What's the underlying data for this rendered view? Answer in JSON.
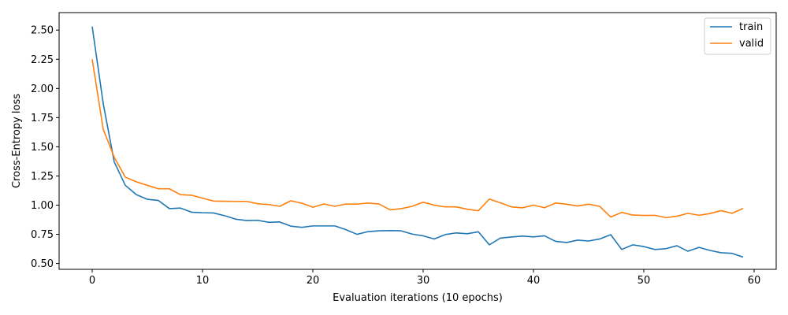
{
  "chart_data": {
    "type": "line",
    "title": "",
    "xlabel": "Evaluation iterations (10 epochs)",
    "ylabel": "Cross-Entropy loss",
    "xlim": [
      -3,
      62
    ],
    "ylim": [
      0.45,
      2.65
    ],
    "xticks": [
      0,
      10,
      20,
      30,
      40,
      50,
      60
    ],
    "yticks": [
      0.5,
      0.75,
      1.0,
      1.25,
      1.5,
      1.75,
      2.0,
      2.25,
      2.5
    ],
    "grid": false,
    "legend_position": "top-right",
    "x": [
      0,
      1,
      2,
      3,
      4,
      5,
      6,
      7,
      8,
      9,
      10,
      11,
      12,
      13,
      14,
      15,
      16,
      17,
      18,
      19,
      20,
      21,
      22,
      23,
      24,
      25,
      26,
      27,
      28,
      29,
      30,
      31,
      32,
      33,
      34,
      35,
      36,
      37,
      38,
      39,
      40,
      41,
      42,
      43,
      44,
      45,
      46,
      47,
      48,
      49,
      50,
      51,
      52,
      53,
      54,
      55,
      56,
      57,
      58,
      59
    ],
    "series": [
      {
        "name": "train",
        "color": "#1f77b4",
        "values": [
          2.53,
          1.87,
          1.37,
          1.17,
          1.09,
          1.05,
          1.04,
          0.97,
          0.975,
          0.94,
          0.935,
          0.933,
          0.91,
          0.88,
          0.868,
          0.87,
          0.853,
          0.856,
          0.82,
          0.81,
          0.822,
          0.822,
          0.822,
          0.79,
          0.75,
          0.773,
          0.78,
          0.782,
          0.78,
          0.752,
          0.737,
          0.71,
          0.748,
          0.762,
          0.755,
          0.772,
          0.66,
          0.718,
          0.727,
          0.735,
          0.728,
          0.737,
          0.69,
          0.68,
          0.7,
          0.693,
          0.71,
          0.747,
          0.62,
          0.66,
          0.645,
          0.62,
          0.627,
          0.652,
          0.605,
          0.638,
          0.612,
          0.592,
          0.587,
          0.555
        ]
      },
      {
        "name": "valid",
        "color": "#ff7f0e",
        "values": [
          2.25,
          1.65,
          1.41,
          1.24,
          1.2,
          1.17,
          1.14,
          1.14,
          1.09,
          1.085,
          1.06,
          1.035,
          1.033,
          1.032,
          1.032,
          1.012,
          1.005,
          0.99,
          1.037,
          1.017,
          0.982,
          1.01,
          0.99,
          1.01,
          1.009,
          1.018,
          1.01,
          0.96,
          0.97,
          0.99,
          1.025,
          1.0,
          0.985,
          0.985,
          0.965,
          0.952,
          1.052,
          1.02,
          0.985,
          0.977,
          1.0,
          0.978,
          1.018,
          1.008,
          0.993,
          1.008,
          0.99,
          0.898,
          0.938,
          0.915,
          0.912,
          0.913,
          0.893,
          0.905,
          0.93,
          0.913,
          0.928,
          0.953,
          0.93,
          0.972
        ]
      }
    ]
  }
}
